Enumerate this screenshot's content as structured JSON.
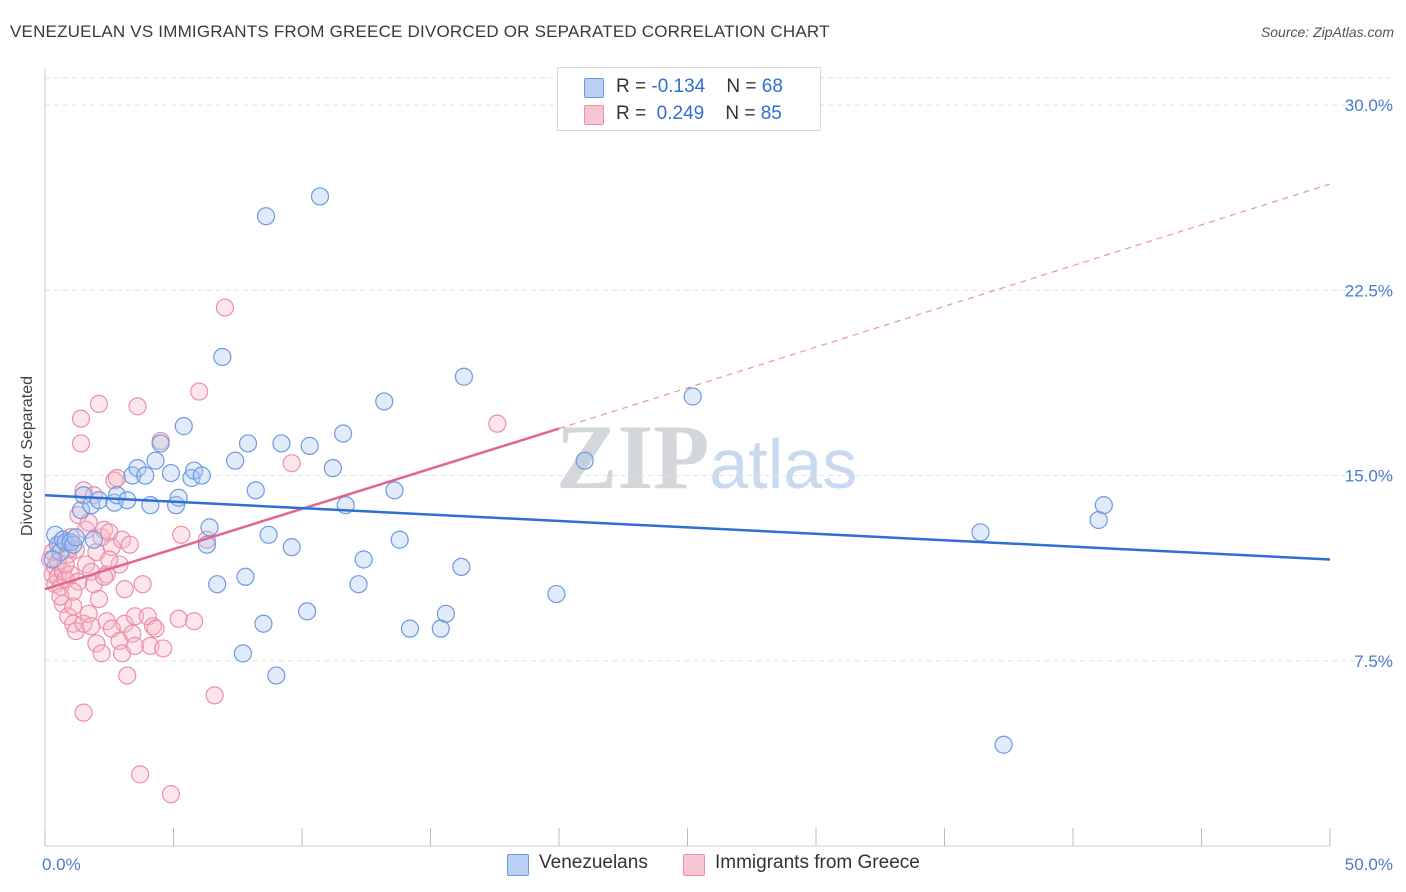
{
  "title": "VENEZUELAN VS IMMIGRANTS FROM GREECE DIVORCED OR SEPARATED CORRELATION CHART",
  "source": "Source: ZipAtlas.com",
  "watermark": {
    "zip": "ZIP",
    "atlas": "atlas"
  },
  "legend": {
    "rows": [
      {
        "r_label": "R = ",
        "r_value": "-0.134",
        "n_label": "N = ",
        "n_value": "68"
      },
      {
        "r_label": "R = ",
        "r_value": "0.249",
        "n_label": "N = ",
        "n_value": "85"
      }
    ]
  },
  "bottom_legend": {
    "venezuelans": "Venezuelans",
    "greece": "Immigrants from Greece"
  },
  "colors": {
    "blue_fill": "#a9c6f0",
    "blue_stroke": "#6d9be0",
    "blue_line": "#2f6fd1",
    "pink_fill": "#f5b6c8",
    "pink_stroke": "#ec8fab",
    "pink_line": "#e0668f",
    "grid": "#e3e3e3",
    "tick_text": "#4a7cc9"
  },
  "chart_data": {
    "type": "scatter",
    "title": "VENEZUELAN VS IMMIGRANTS FROM GREECE DIVORCED OR SEPARATED CORRELATION CHART",
    "xlabel": "",
    "ylabel": "Divorced or Separated",
    "xlim": [
      0,
      50
    ],
    "ylim": [
      0,
      31.5
    ],
    "x_tick_labels": [
      "0.0%",
      "50.0%"
    ],
    "y_ticks": [
      7.5,
      15.0,
      22.5,
      30.0
    ],
    "y_tick_labels": [
      "7.5%",
      "15.0%",
      "22.5%",
      "30.0%"
    ],
    "grid": true,
    "legend_position": "top-center",
    "series": [
      {
        "name": "Venezuelans",
        "R": -0.134,
        "N": 68,
        "trend": {
          "x": [
            0,
            50
          ],
          "y": [
            14.2,
            11.6
          ]
        },
        "points": [
          [
            0.4,
            12.6
          ],
          [
            0.5,
            12.2
          ],
          [
            0.6,
            11.9
          ],
          [
            0.7,
            12.4
          ],
          [
            0.8,
            12.3
          ],
          [
            1.0,
            12.3
          ],
          [
            1.1,
            12.2
          ],
          [
            1.2,
            12.5
          ],
          [
            1.4,
            13.6
          ],
          [
            1.5,
            14.2
          ],
          [
            1.8,
            13.8
          ],
          [
            1.9,
            12.4
          ],
          [
            2.1,
            14.0
          ],
          [
            2.7,
            13.9
          ],
          [
            2.8,
            14.2
          ],
          [
            3.2,
            14.0
          ],
          [
            3.4,
            15.0
          ],
          [
            3.6,
            15.3
          ],
          [
            3.9,
            15.0
          ],
          [
            4.1,
            13.8
          ],
          [
            4.3,
            15.6
          ],
          [
            4.5,
            16.3
          ],
          [
            4.9,
            15.1
          ],
          [
            5.1,
            13.8
          ],
          [
            5.2,
            14.1
          ],
          [
            5.4,
            17.0
          ],
          [
            5.7,
            14.9
          ],
          [
            5.8,
            15.2
          ],
          [
            6.1,
            15.0
          ],
          [
            6.3,
            12.2
          ],
          [
            6.4,
            12.9
          ],
          [
            6.7,
            10.6
          ],
          [
            6.9,
            19.8
          ],
          [
            7.4,
            15.6
          ],
          [
            7.7,
            7.8
          ],
          [
            7.8,
            10.9
          ],
          [
            7.9,
            16.3
          ],
          [
            8.2,
            14.4
          ],
          [
            8.5,
            9.0
          ],
          [
            8.6,
            25.5
          ],
          [
            8.7,
            12.6
          ],
          [
            9.0,
            6.9
          ],
          [
            9.2,
            16.3
          ],
          [
            9.6,
            12.1
          ],
          [
            10.2,
            9.5
          ],
          [
            10.3,
            16.2
          ],
          [
            10.7,
            26.3
          ],
          [
            11.2,
            15.3
          ],
          [
            11.6,
            16.7
          ],
          [
            11.7,
            13.8
          ],
          [
            12.2,
            10.6
          ],
          [
            12.4,
            11.6
          ],
          [
            13.2,
            18.0
          ],
          [
            13.6,
            14.4
          ],
          [
            13.8,
            12.4
          ],
          [
            14.2,
            8.8
          ],
          [
            15.4,
            8.8
          ],
          [
            15.6,
            9.4
          ],
          [
            16.2,
            11.3
          ],
          [
            16.3,
            19.0
          ],
          [
            19.9,
            10.2
          ],
          [
            21.0,
            15.6
          ],
          [
            25.2,
            18.2
          ],
          [
            36.4,
            12.7
          ],
          [
            37.3,
            4.1
          ],
          [
            41.0,
            13.2
          ],
          [
            41.2,
            13.8
          ],
          [
            0.3,
            11.6
          ]
        ]
      },
      {
        "name": "Immigrants from Greece",
        "R": 0.249,
        "N": 85,
        "trend": {
          "x": [
            0,
            20
          ],
          "y": [
            10.4,
            16.9
          ]
        },
        "trend_dashed": {
          "x": [
            20,
            50
          ],
          "y": [
            16.9,
            26.8
          ]
        },
        "points": [
          [
            0.2,
            11.6
          ],
          [
            0.3,
            11.0
          ],
          [
            0.3,
            11.9
          ],
          [
            0.4,
            10.6
          ],
          [
            0.4,
            11.3
          ],
          [
            0.5,
            10.9
          ],
          [
            0.5,
            11.5
          ],
          [
            0.6,
            12.2
          ],
          [
            0.6,
            10.5
          ],
          [
            0.7,
            9.8
          ],
          [
            0.7,
            11.1
          ],
          [
            0.8,
            10.8
          ],
          [
            0.9,
            11.8
          ],
          [
            0.9,
            9.3
          ],
          [
            1.0,
            11.0
          ],
          [
            1.0,
            12.5
          ],
          [
            1.1,
            9.0
          ],
          [
            1.1,
            9.7
          ],
          [
            1.2,
            12.0
          ],
          [
            1.2,
            8.7
          ],
          [
            1.3,
            13.4
          ],
          [
            1.3,
            10.7
          ],
          [
            1.4,
            17.3
          ],
          [
            1.4,
            16.3
          ],
          [
            1.5,
            14.4
          ],
          [
            1.5,
            9.0
          ],
          [
            1.6,
            11.4
          ],
          [
            1.6,
            12.8
          ],
          [
            1.7,
            9.4
          ],
          [
            1.8,
            8.9
          ],
          [
            1.8,
            11.1
          ],
          [
            1.9,
            10.6
          ],
          [
            1.9,
            14.2
          ],
          [
            2.0,
            11.9
          ],
          [
            2.0,
            8.2
          ],
          [
            2.1,
            17.9
          ],
          [
            2.1,
            10.0
          ],
          [
            2.2,
            12.5
          ],
          [
            2.2,
            7.8
          ],
          [
            2.3,
            12.8
          ],
          [
            2.4,
            9.1
          ],
          [
            2.4,
            11.0
          ],
          [
            2.5,
            12.7
          ],
          [
            2.6,
            8.8
          ],
          [
            2.6,
            12.1
          ],
          [
            2.7,
            14.8
          ],
          [
            2.8,
            14.9
          ],
          [
            2.9,
            8.3
          ],
          [
            2.9,
            11.4
          ],
          [
            3.0,
            12.4
          ],
          [
            3.0,
            7.8
          ],
          [
            3.1,
            9.0
          ],
          [
            3.2,
            6.9
          ],
          [
            3.3,
            12.2
          ],
          [
            3.4,
            8.6
          ],
          [
            3.5,
            8.1
          ],
          [
            3.5,
            9.3
          ],
          [
            3.6,
            17.8
          ],
          [
            3.7,
            2.9
          ],
          [
            3.8,
            10.6
          ],
          [
            4.0,
            9.3
          ],
          [
            4.1,
            8.1
          ],
          [
            4.2,
            8.9
          ],
          [
            4.3,
            8.8
          ],
          [
            4.5,
            16.4
          ],
          [
            4.6,
            8.0
          ],
          [
            4.9,
            2.1
          ],
          [
            5.2,
            9.2
          ],
          [
            5.3,
            12.6
          ],
          [
            5.8,
            9.1
          ],
          [
            6.0,
            18.4
          ],
          [
            6.3,
            12.4
          ],
          [
            6.6,
            6.1
          ],
          [
            7.0,
            21.8
          ],
          [
            9.6,
            15.5
          ],
          [
            17.6,
            17.1
          ],
          [
            1.5,
            5.4
          ],
          [
            0.8,
            11.4
          ],
          [
            1.1,
            10.3
          ],
          [
            2.3,
            10.9
          ],
          [
            0.6,
            10.1
          ],
          [
            0.9,
            12.0
          ],
          [
            1.7,
            13.1
          ],
          [
            2.5,
            11.6
          ],
          [
            3.1,
            10.4
          ]
        ]
      }
    ]
  }
}
